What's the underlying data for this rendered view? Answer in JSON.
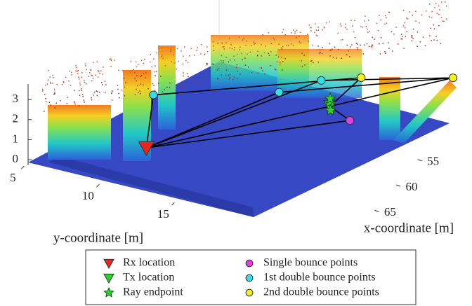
{
  "chart_data": {
    "type": "scatter3d",
    "xlabel": "x-coordinate [m]",
    "ylabel": "y-coordinate [m]",
    "xlim": [
      52,
      68
    ],
    "xticks": [
      55,
      60,
      65
    ],
    "ylim": [
      4,
      19
    ],
    "yticks": [
      5,
      10,
      15
    ],
    "zlim": [
      0,
      3.6
    ],
    "zticks": [
      0,
      1,
      2,
      3
    ],
    "series": [
      {
        "name": "Rx location",
        "color": "#e8251f",
        "marker": "triangle-down",
        "x": [
          65.9
        ],
        "y": [
          10.2
        ],
        "z": [
          1.2
        ]
      },
      {
        "name": "Tx location",
        "color": "#2fd12f",
        "marker": "triangle-down",
        "x": [
          57.2
        ],
        "y": [
          15.5
        ],
        "z": [
          1.5
        ]
      },
      {
        "name": "Ray endpoint",
        "color": "#2fd12f",
        "marker": "star",
        "x": [
          57.0,
          57.4,
          56.8
        ],
        "y": [
          15.3,
          15.7,
          15.2
        ],
        "z": [
          1.6,
          1.4,
          1.7
        ]
      },
      {
        "name": "Single bounce points",
        "color": "#e040e0",
        "marker": "circle",
        "x": [
          59.3
        ],
        "y": [
          18.5
        ],
        "z": [
          2.0
        ]
      },
      {
        "name": "1st double bounce points",
        "color": "#33e0e8",
        "marker": "circle",
        "x": [
          64.3,
          60.7,
          58.3
        ],
        "y": [
          9.4,
          14.9,
          15.8
        ],
        "z": [
          3.2,
          3.2,
          3.2
        ]
      },
      {
        "name": "2nd double bounce points",
        "color": "#f5f020",
        "marker": "circle",
        "x": [
          57.6,
          55.2
        ],
        "y": [
          17.9,
          22.1
        ],
        "z": [
          3.5,
          3.5
        ]
      }
    ]
  }
}
